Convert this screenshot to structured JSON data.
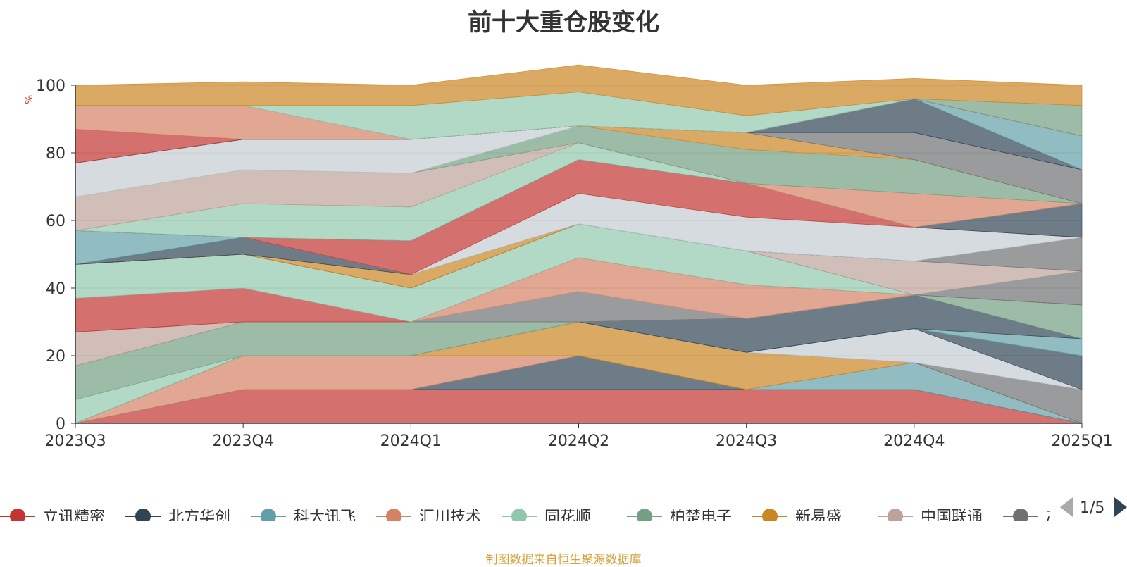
{
  "page": {
    "title": "前十大重仓股变化",
    "unit": "%",
    "footer": "制图数据来自恒生聚源数据库",
    "pager": "1/5"
  },
  "chart_data": {
    "type": "area",
    "stacked": true,
    "title": "前十大重仓股变化",
    "ylabel": "%",
    "xlabel": "",
    "ylim": [
      0,
      100
    ],
    "yticks": [
      0,
      20,
      40,
      60,
      80,
      100
    ],
    "categories": [
      "2023Q3",
      "2023Q4",
      "2024Q1",
      "2024Q2",
      "2024Q3",
      "2024Q4",
      "2025Q1"
    ],
    "grid": true,
    "legend_position": "bottom",
    "legend": [
      {
        "name": "立讯精密",
        "color": "#c23531"
      },
      {
        "name": "北方华创",
        "color": "#2f4554"
      },
      {
        "name": "科大讯飞",
        "color": "#61a0a8"
      },
      {
        "name": "汇川技术",
        "color": "#d48265"
      },
      {
        "name": "同花顺",
        "color": "#91c7ae"
      },
      {
        "name": "柏楚电子",
        "color": "#749f83"
      },
      {
        "name": "新易盛",
        "color": "#ca8622"
      },
      {
        "name": "中国联通",
        "color": "#bda29a"
      },
      {
        "name": "芯原股",
        "color": "#6e7074"
      }
    ],
    "series": [
      {
        "color": "#c23531",
        "values": [
          0,
          10,
          10,
          10,
          10,
          10,
          0
        ]
      },
      {
        "color": "#2f4554",
        "values": [
          0,
          0,
          0,
          10,
          0,
          0,
          0
        ]
      },
      {
        "color": "#61a0a8",
        "values": [
          0,
          0,
          0,
          0,
          0,
          8,
          0
        ]
      },
      {
        "color": "#d48265",
        "values": [
          0,
          10,
          10,
          0,
          0,
          0,
          0
        ]
      },
      {
        "color": "#ca8622",
        "values": [
          0,
          0,
          0,
          10,
          11,
          0,
          0
        ]
      },
      {
        "color": "#6e7074",
        "values": [
          0,
          0,
          0,
          0,
          0,
          0,
          10
        ]
      },
      {
        "color": "#c4ccd3",
        "values": [
          0,
          0,
          0,
          0,
          0,
          10,
          0
        ]
      },
      {
        "color": "#2f4554",
        "values": [
          0,
          0,
          0,
          0,
          0,
          0,
          10
        ]
      },
      {
        "color": "#91c7ae",
        "values": [
          7,
          0,
          0,
          0,
          0,
          0,
          0
        ]
      },
      {
        "color": "#749f83",
        "values": [
          10,
          10,
          10,
          0,
          0,
          0,
          0
        ]
      },
      {
        "color": "#61a0a8",
        "values": [
          0,
          0,
          0,
          0,
          0,
          0,
          5
        ]
      },
      {
        "color": "#2f4554",
        "values": [
          0,
          0,
          0,
          0,
          10,
          10,
          0
        ]
      },
      {
        "color": "#749f83",
        "values": [
          0,
          0,
          0,
          0,
          0,
          0,
          10
        ]
      },
      {
        "color": "#bda29a",
        "values": [
          10,
          0,
          0,
          0,
          0,
          0,
          0
        ]
      },
      {
        "color": "#6e7074",
        "values": [
          0,
          0,
          0,
          9,
          0,
          0,
          0
        ]
      },
      {
        "color": "#c4ccd3",
        "values": [
          0,
          0,
          0,
          0,
          0,
          0,
          0
        ]
      },
      {
        "color": "#d48265",
        "values": [
          0,
          0,
          0,
          10,
          10,
          0,
          0
        ]
      },
      {
        "color": "#c23531",
        "values": [
          10,
          10,
          0,
          0,
          0,
          0,
          0
        ]
      },
      {
        "color": "#91c7ae",
        "values": [
          10,
          10,
          10,
          10,
          10,
          0,
          0
        ]
      },
      {
        "color": "#6e7074",
        "values": [
          0,
          0,
          0,
          0,
          0,
          0,
          10
        ]
      },
      {
        "color": "#bda29a",
        "values": [
          0,
          0,
          0,
          0,
          0,
          10,
          0
        ]
      },
      {
        "color": "#6e7074",
        "values": [
          0,
          0,
          0,
          0,
          0,
          0,
          10
        ]
      },
      {
        "color": "#ca8622",
        "values": [
          0,
          0,
          4,
          0,
          0,
          0,
          0
        ]
      },
      {
        "color": "#2f4554",
        "values": [
          0,
          5,
          0,
          0,
          0,
          0,
          0
        ]
      },
      {
        "color": "#61a0a8",
        "values": [
          10,
          0,
          0,
          0,
          0,
          0,
          0
        ]
      },
      {
        "color": "#c4ccd3",
        "values": [
          0,
          0,
          0,
          9,
          10,
          10,
          0
        ]
      },
      {
        "color": "#c23531",
        "values": [
          0,
          0,
          10,
          10,
          10,
          0,
          0
        ]
      },
      {
        "color": "#2f4554",
        "values": [
          0,
          0,
          0,
          0,
          0,
          0,
          10
        ]
      },
      {
        "color": "#91c7ae",
        "values": [
          0,
          10,
          10,
          5,
          0,
          0,
          0
        ]
      },
      {
        "color": "#d48265",
        "values": [
          0,
          0,
          0,
          0,
          0,
          10,
          0
        ]
      },
      {
        "color": "#bda29a",
        "values": [
          10,
          10,
          10,
          0,
          0,
          0,
          0
        ]
      },
      {
        "color": "#749f83",
        "values": [
          0,
          0,
          0,
          5,
          10,
          10,
          0
        ]
      },
      {
        "color": "#c4ccd3",
        "values": [
          10,
          9,
          10,
          0,
          0,
          0,
          0
        ]
      },
      {
        "color": "#ca8622",
        "values": [
          0,
          0,
          0,
          0,
          5,
          0,
          0
        ]
      },
      {
        "color": "#6e7074",
        "values": [
          0,
          0,
          0,
          0,
          0,
          8,
          10
        ]
      },
      {
        "color": "#2f4554",
        "values": [
          0,
          0,
          0,
          0,
          0,
          10,
          0
        ]
      },
      {
        "color": "#61a0a8",
        "values": [
          0,
          0,
          0,
          0,
          0,
          0,
          10
        ]
      },
      {
        "color": "#c23531",
        "values": [
          10,
          0,
          0,
          0,
          0,
          0,
          0
        ]
      },
      {
        "color": "#d48265",
        "values": [
          7,
          10,
          0,
          0,
          0,
          0,
          0
        ]
      },
      {
        "color": "#749f83",
        "values": [
          0,
          0,
          0,
          0,
          0,
          0,
          9
        ]
      },
      {
        "color": "#91c7ae",
        "values": [
          0,
          0,
          10,
          10,
          5,
          0,
          0
        ]
      },
      {
        "color": "#ca8622",
        "values": [
          6,
          7,
          6,
          8,
          9,
          6,
          6
        ]
      }
    ]
  }
}
